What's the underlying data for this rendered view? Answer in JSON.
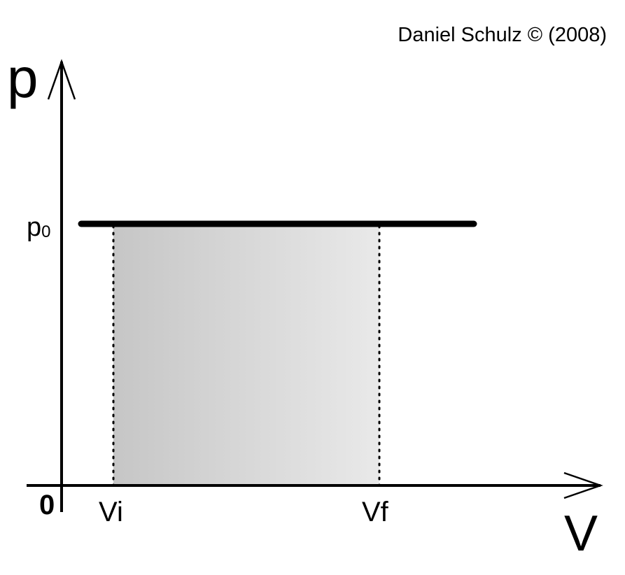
{
  "credit": "Daniel Schulz © (2008)",
  "axes": {
    "y_label": "p",
    "x_label": "V",
    "origin_label": "0"
  },
  "pressure_label": {
    "base": "p",
    "subscript": "0"
  },
  "volume_labels": {
    "initial": "Vi",
    "final": "Vf"
  },
  "colors": {
    "line": "#000000",
    "area_dark": "#c6c6c6",
    "area_light": "#e9e9e9",
    "background": "#ffffff"
  }
}
